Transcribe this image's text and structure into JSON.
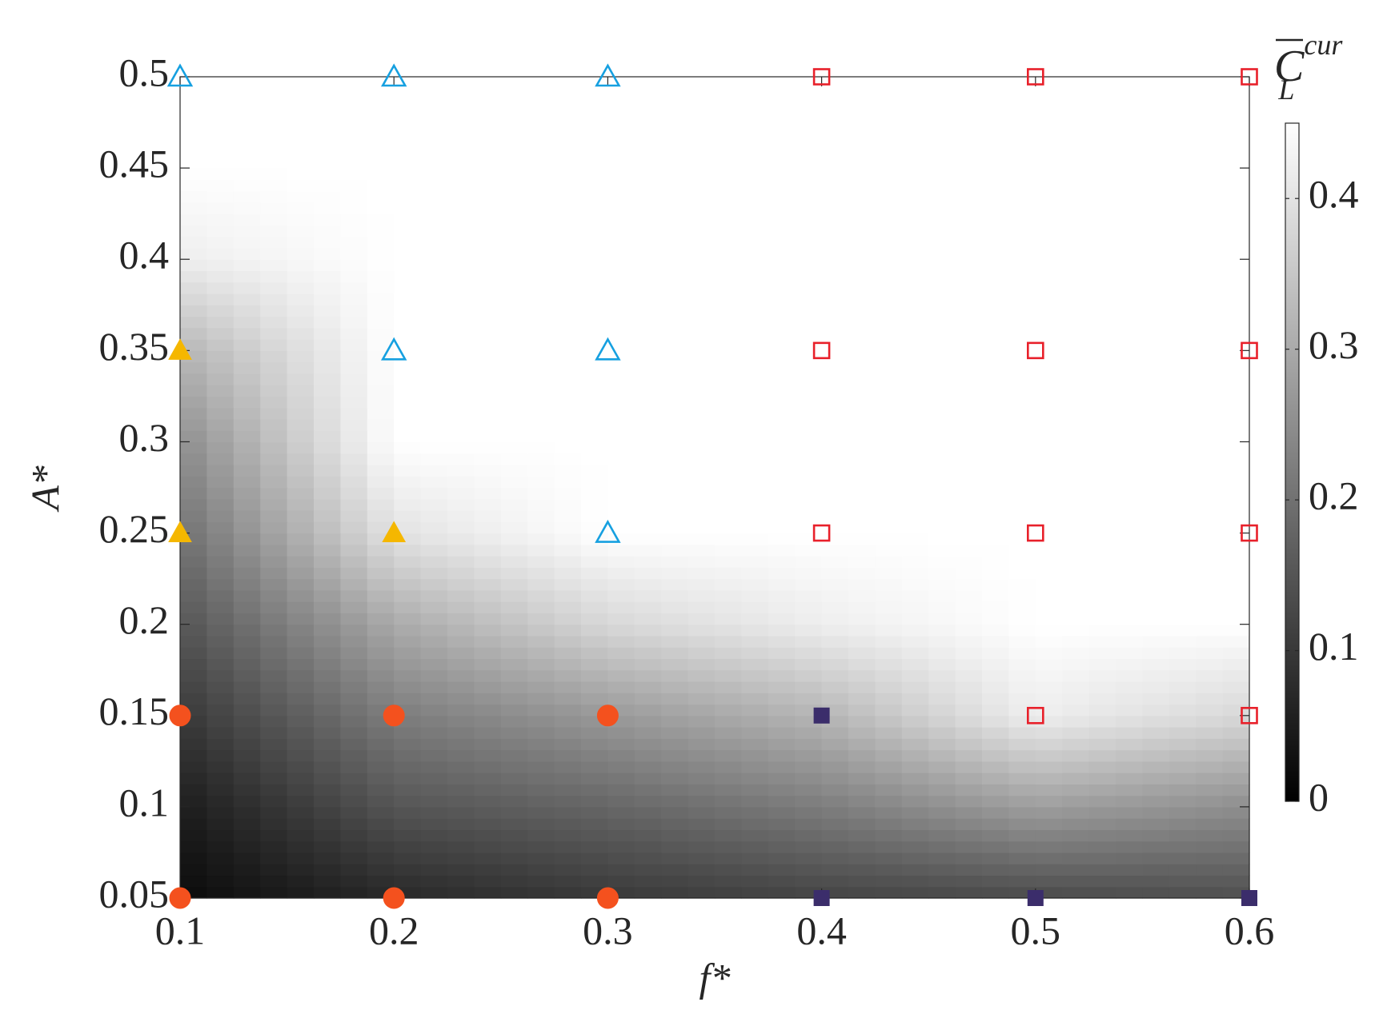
{
  "chart_data": {
    "type": "heatmap-scatter",
    "x_label": "f*",
    "y_label": "A*",
    "xlim": [
      0.1,
      0.6
    ],
    "ylim": [
      0.05,
      0.5
    ],
    "xticks": [
      0.1,
      0.2,
      0.3,
      0.4,
      0.5,
      0.6
    ],
    "yticks": [
      0.05,
      0.1,
      0.15,
      0.2,
      0.25,
      0.3,
      0.35,
      0.4,
      0.45,
      0.5
    ],
    "heatmap": {
      "x": [
        0.1,
        0.2,
        0.3,
        0.4,
        0.5,
        0.6
      ],
      "y": [
        0.05,
        0.1,
        0.15,
        0.2,
        0.25,
        0.3,
        0.35,
        0.4,
        0.45,
        0.5
      ],
      "z": [
        [
          0.02,
          0.07,
          0.1,
          0.12,
          0.13,
          0.14
        ],
        [
          0.05,
          0.15,
          0.18,
          0.22,
          0.28,
          0.25
        ],
        [
          0.1,
          0.22,
          0.27,
          0.32,
          0.42,
          0.38
        ],
        [
          0.15,
          0.3,
          0.38,
          0.42,
          0.45,
          0.45
        ],
        [
          0.2,
          0.4,
          0.45,
          0.45,
          0.45,
          0.45
        ],
        [
          0.25,
          0.45,
          0.45,
          0.45,
          0.45,
          0.45
        ],
        [
          0.32,
          0.45,
          0.45,
          0.45,
          0.45,
          0.45
        ],
        [
          0.42,
          0.45,
          0.45,
          0.45,
          0.45,
          0.45
        ],
        [
          0.45,
          0.45,
          0.45,
          0.45,
          0.45,
          0.45
        ],
        [
          0.45,
          0.45,
          0.45,
          0.45,
          0.45,
          0.45
        ]
      ]
    },
    "colorbar": {
      "clim": [
        0,
        0.45
      ],
      "ticks": [
        0,
        0.1,
        0.2,
        0.3,
        0.4
      ],
      "label": {
        "base": "C",
        "sub": "L",
        "sup": "cur"
      }
    },
    "series": [
      {
        "marker": "circle",
        "filled": true,
        "color": "#f4511e",
        "x": [
          0.1,
          0.1,
          0.2,
          0.2,
          0.3,
          0.3
        ],
        "y": [
          0.05,
          0.15,
          0.05,
          0.15,
          0.05,
          0.15
        ]
      },
      {
        "marker": "square",
        "filled": true,
        "color": "#3b2d6b",
        "x": [
          0.4,
          0.4,
          0.5,
          0.6
        ],
        "y": [
          0.05,
          0.15,
          0.05,
          0.05
        ]
      },
      {
        "marker": "triangle",
        "filled": true,
        "color": "#f5b700",
        "x": [
          0.1,
          0.1,
          0.2
        ],
        "y": [
          0.25,
          0.35,
          0.25
        ]
      },
      {
        "marker": "triangle",
        "filled": false,
        "color": "#16a0e0",
        "x": [
          0.1,
          0.2,
          0.3,
          0.2,
          0.3,
          0.3
        ],
        "y": [
          0.5,
          0.5,
          0.5,
          0.35,
          0.35,
          0.25
        ]
      },
      {
        "marker": "square",
        "filled": false,
        "color": "#e8202a",
        "x": [
          0.4,
          0.5,
          0.6,
          0.4,
          0.5,
          0.6,
          0.4,
          0.5,
          0.6,
          0.5,
          0.6
        ],
        "y": [
          0.5,
          0.5,
          0.5,
          0.35,
          0.35,
          0.35,
          0.25,
          0.25,
          0.25,
          0.15,
          0.15
        ]
      }
    ]
  }
}
